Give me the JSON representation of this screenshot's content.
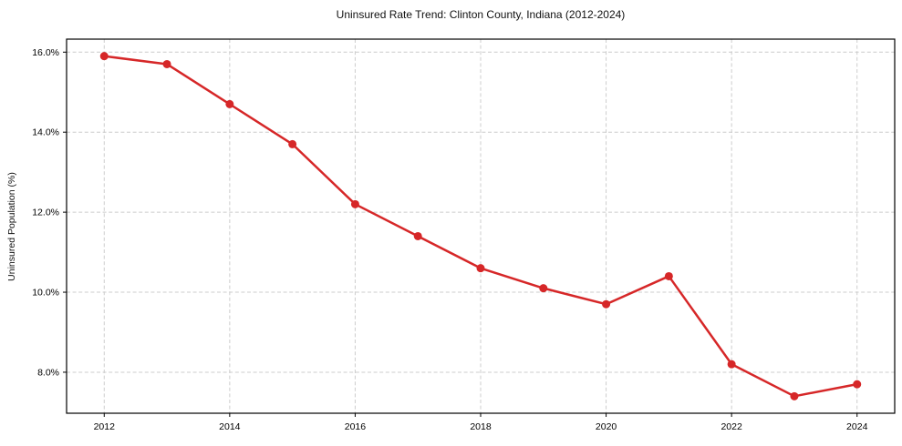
{
  "chart_data": {
    "type": "line",
    "title": "Uninsured Rate Trend: Clinton County, Indiana (2012-2024)",
    "xlabel": "",
    "ylabel": "Uninsured Population (%)",
    "x": [
      2012,
      2013,
      2014,
      2015,
      2016,
      2017,
      2018,
      2019,
      2020,
      2021,
      2022,
      2023,
      2024
    ],
    "values": [
      15.9,
      15.7,
      14.7,
      13.7,
      12.2,
      11.4,
      10.6,
      10.1,
      9.7,
      10.4,
      8.2,
      7.4,
      7.7
    ],
    "series_name": "Uninsured rate",
    "xlim": [
      2011.4,
      2024.6
    ],
    "ylim": [
      6.975,
      16.325
    ],
    "xticks": [
      2012,
      2014,
      2016,
      2018,
      2020,
      2022,
      2024
    ],
    "xtick_labels": [
      "2012",
      "2014",
      "2016",
      "2018",
      "2020",
      "2022",
      "2024"
    ],
    "yticks": [
      8.0,
      10.0,
      12.0,
      14.0,
      16.0
    ],
    "ytick_labels": [
      "8.0%",
      "10.0%",
      "12.0%",
      "14.0%",
      "16.0%"
    ],
    "grid": true,
    "grid_style": "dashed",
    "grid_color": "#cccccc",
    "line_color": "#d62728",
    "marker": "circle",
    "marker_color": "#d62728",
    "background_color": "#ffffff",
    "spine_color": "#000000",
    "legend": null
  }
}
